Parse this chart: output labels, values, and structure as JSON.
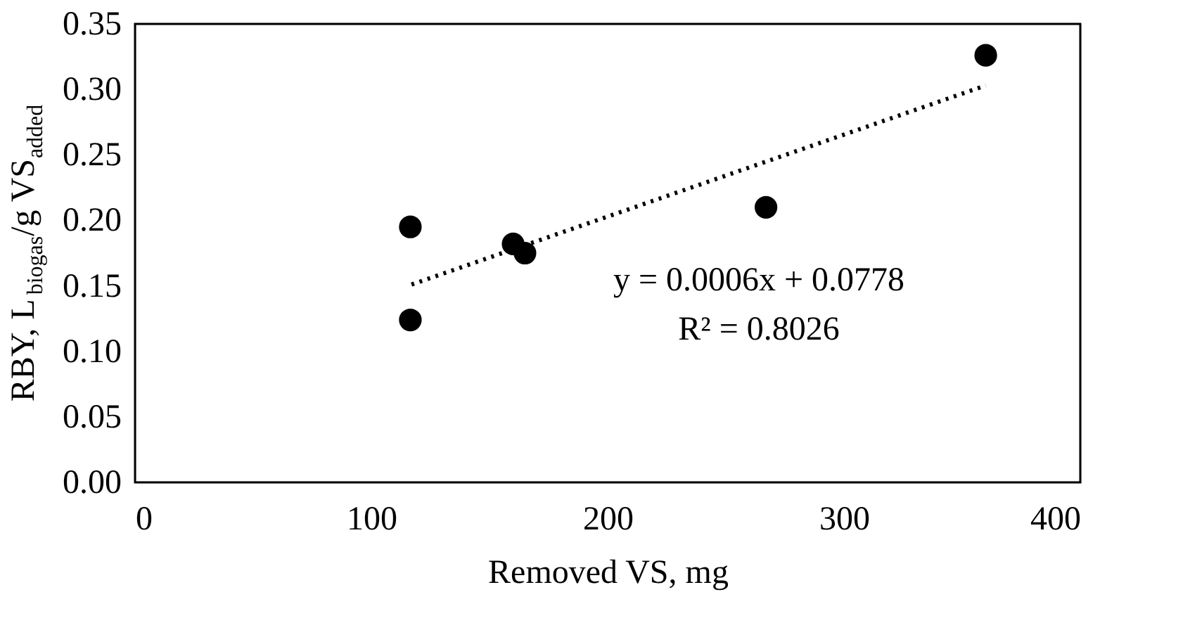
{
  "chart_data": {
    "type": "scatter",
    "xlabel": "Removed VS, mg",
    "ylabel": "RBY, L$_{biogas}$/g VS$_{added}$",
    "xlim": [
      0,
      400
    ],
    "xticks": [
      0,
      100,
      200,
      300,
      400
    ],
    "ylim": [
      0,
      0.35
    ],
    "yticks": [
      {
        "value": 0,
        "label": "0.00"
      },
      0.05,
      {
        "value": 0.1,
        "label": "0.10"
      },
      0.15,
      {
        "value": 0.2,
        "label": "0.20"
      },
      0.25,
      {
        "value": 0.3,
        "label": "0.30"
      },
      0.35
    ],
    "grid": false,
    "marker": "circle",
    "series": [
      {
        "color": "#000000",
        "x": [
          116.5,
          116.5,
          160,
          165,
          267,
          360
        ],
        "values": [
          0.195,
          0.124,
          0.182,
          0.175,
          0.21,
          0.326
        ]
      },
      {
        "type": "line",
        "color": "#000000",
        "line_style": "dotted",
        "marker": "none",
        "x": [
          117,
          360
        ],
        "values": [
          0.151,
          0.303
        ]
      }
    ],
    "annotations": [
      "y = 0.0006x + 0.0778",
      "R² = 0.8026"
    ]
  }
}
